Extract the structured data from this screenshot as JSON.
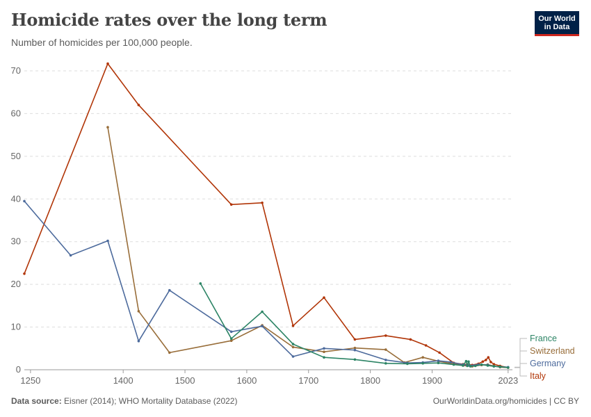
{
  "header": {
    "title": "Homicide rates over the long term",
    "subtitle": "Number of homicides per 100,000 people.",
    "logo_line1": "Our World",
    "logo_line2": "in Data"
  },
  "footer": {
    "source_label": "Data source:",
    "source_text": "Eisner (2014); WHO Mortality Database (2022)",
    "url_text": "OurWorldinData.org/homicides | CC BY"
  },
  "chart_data": {
    "type": "line",
    "title": "Homicide rates over the long term",
    "subtitle": "Number of homicides per 100,000 people.",
    "xlabel": "",
    "ylabel": "",
    "xlim": [
      1240,
      2030
    ],
    "ylim": [
      0,
      70
    ],
    "x_ticks": [
      1250,
      1400,
      1500,
      1600,
      1700,
      1800,
      1900,
      2023
    ],
    "y_ticks": [
      0,
      10,
      20,
      30,
      40,
      50,
      60,
      70
    ],
    "grid": "horizontal dashed",
    "legend_placement": "right, end of lines",
    "series": [
      {
        "name": "Italy",
        "color": "#b13507",
        "points": [
          [
            1240,
            22.5
          ],
          [
            1375,
            71.7
          ],
          [
            1425,
            62
          ],
          [
            1575,
            38.7
          ],
          [
            1625,
            39.1
          ],
          [
            1675,
            10.3
          ],
          [
            1725,
            16.9
          ],
          [
            1775,
            7.1
          ],
          [
            1825,
            8
          ],
          [
            1865,
            7.1
          ],
          [
            1890,
            5.7
          ],
          [
            1912,
            4
          ],
          [
            1935,
            1.6
          ],
          [
            1950,
            1.3
          ],
          [
            1957,
            1.2
          ],
          [
            1965,
            1.1
          ],
          [
            1975,
            1.4
          ],
          [
            1982,
            1.9
          ],
          [
            1987,
            2.3
          ],
          [
            1991,
            2.9
          ],
          [
            1995,
            1.8
          ],
          [
            2000,
            1.3
          ],
          [
            2010,
            0.9
          ],
          [
            2023,
            0.5
          ]
        ]
      },
      {
        "name": "Switzerland",
        "color": "#986d39",
        "points": [
          [
            1375,
            56.8
          ],
          [
            1425,
            13.7
          ],
          [
            1475,
            4
          ],
          [
            1575,
            6.8
          ],
          [
            1625,
            10.4
          ],
          [
            1675,
            5.3
          ],
          [
            1725,
            4.2
          ],
          [
            1775,
            5.1
          ],
          [
            1825,
            4.7
          ],
          [
            1855,
            1.7
          ],
          [
            1885,
            2.9
          ],
          [
            1910,
            2
          ],
          [
            1930,
            1.5
          ],
          [
            1950,
            1
          ],
          [
            1965,
            0.8
          ],
          [
            1980,
            1.1
          ],
          [
            1990,
            1.2
          ],
          [
            2000,
            0.9
          ],
          [
            2010,
            0.6
          ],
          [
            2023,
            0.5
          ]
        ]
      },
      {
        "name": "Germany",
        "color": "#4c6a9c",
        "points": [
          [
            1240,
            39.5
          ],
          [
            1315,
            26.8
          ],
          [
            1375,
            30.2
          ],
          [
            1425,
            6.7
          ],
          [
            1475,
            18.6
          ],
          [
            1575,
            8.9
          ],
          [
            1625,
            10.2
          ],
          [
            1675,
            3.1
          ],
          [
            1725,
            5
          ],
          [
            1775,
            4.6
          ],
          [
            1825,
            2.3
          ],
          [
            1860,
            1.6
          ],
          [
            1885,
            1.7
          ],
          [
            1910,
            2.1
          ],
          [
            1930,
            1.8
          ],
          [
            1950,
            1.2
          ],
          [
            1960,
            1
          ],
          [
            1975,
            1.2
          ],
          [
            1990,
            1.1
          ],
          [
            2000,
            0.8
          ],
          [
            2010,
            0.7
          ],
          [
            2023,
            0.6
          ]
        ]
      },
      {
        "name": "France",
        "color": "#2c8465",
        "points": [
          [
            1525,
            20.2
          ],
          [
            1575,
            7.3
          ],
          [
            1625,
            13.6
          ],
          [
            1675,
            6
          ],
          [
            1725,
            2.9
          ],
          [
            1775,
            2.4
          ],
          [
            1825,
            1.5
          ],
          [
            1860,
            1.4
          ],
          [
            1885,
            1.5
          ],
          [
            1910,
            1.6
          ],
          [
            1935,
            1.2
          ],
          [
            1950,
            1
          ],
          [
            1955,
            2
          ],
          [
            1957,
            0.9
          ],
          [
            1959,
            1.9
          ],
          [
            1962,
            0.8
          ],
          [
            1970,
            0.9
          ],
          [
            1980,
            1.2
          ],
          [
            1990,
            1
          ],
          [
            2000,
            0.8
          ],
          [
            2010,
            0.7
          ],
          [
            2023,
            0.5
          ]
        ]
      }
    ]
  }
}
